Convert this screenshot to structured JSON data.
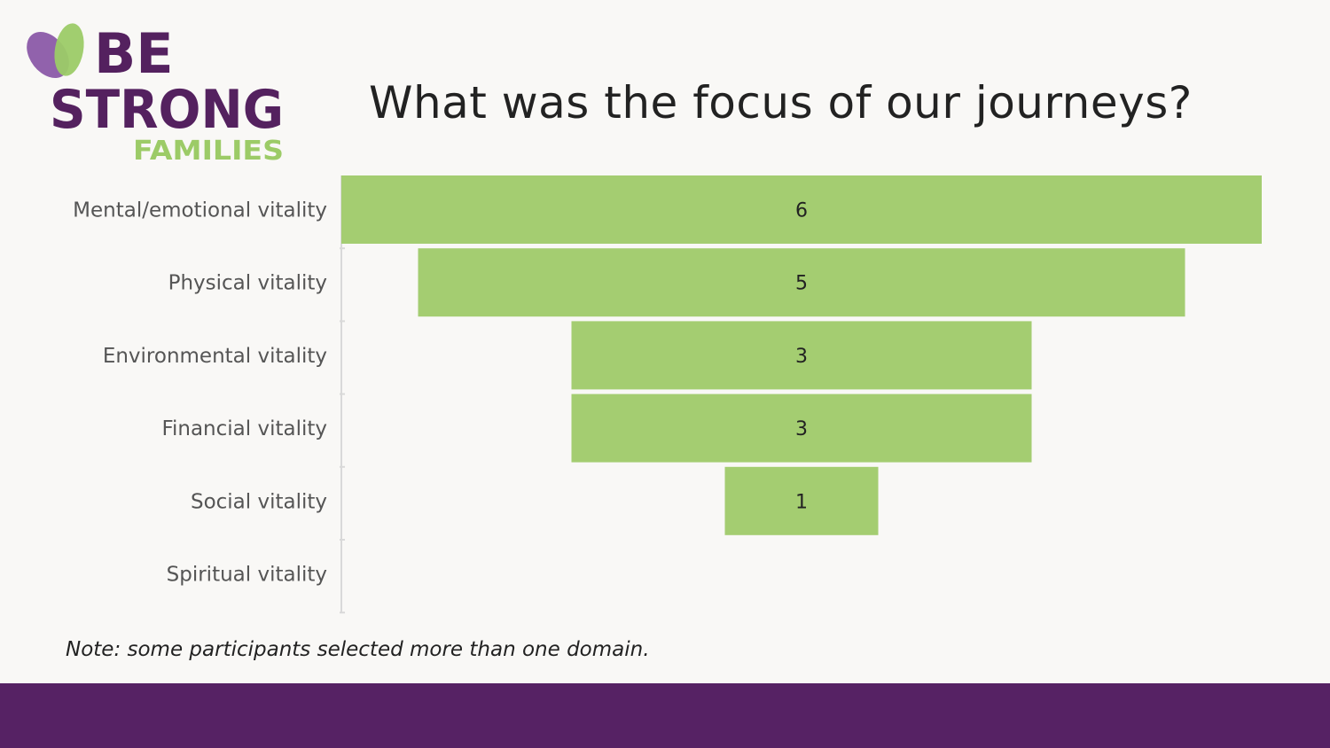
{
  "logo": {
    "line1": "BE",
    "line2": "STRONG",
    "line3": "FAMILIES"
  },
  "title": "What was the focus of our journeys?",
  "note": "Note: some participants selected more than one domain.",
  "colors": {
    "background": "#f9f8f6",
    "bar": "#a4cd71",
    "axis": "#d9d9d9",
    "brand_purple": "#552263",
    "brand_green": "#9ccb67",
    "footer": "#562264"
  },
  "chart_data": {
    "type": "bar",
    "orientation": "horizontal-funnel",
    "categories": [
      "Mental/emotional vitality",
      "Physical vitality",
      "Environmental vitality",
      "Financial vitality",
      "Social vitality",
      "Spiritual vitality"
    ],
    "values": [
      6,
      5,
      3,
      3,
      1,
      0
    ],
    "data_labels": [
      "6",
      "5",
      "3",
      "3",
      "1",
      ""
    ],
    "title": "",
    "xlabel": "",
    "ylabel": "",
    "xlim": [
      0,
      6
    ],
    "grid": false,
    "legend": "none"
  }
}
